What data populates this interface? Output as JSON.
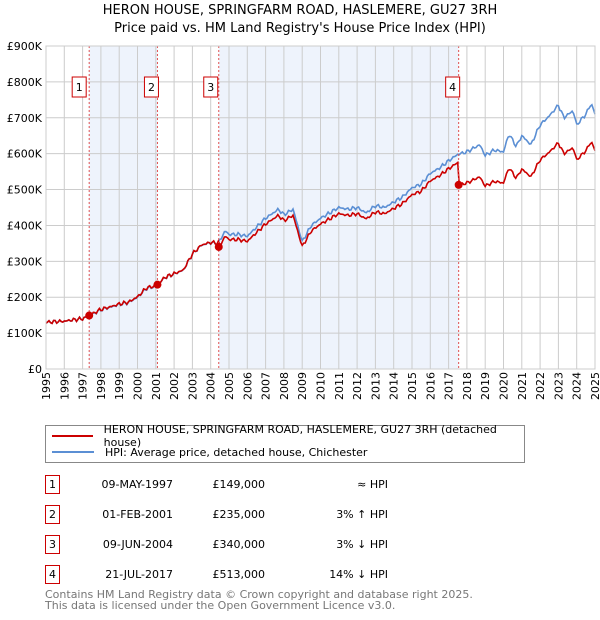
{
  "title": "HERON HOUSE, SPRINGFARM ROAD, HASLEMERE, GU27 3RH",
  "subtitle": "Price paid vs. HM Land Registry's House Price Index (HPI)",
  "chart_data": {
    "type": "line",
    "ylim": [
      0,
      900000
    ],
    "xlim": [
      1995,
      2025
    ],
    "yticks": [
      {
        "v": 0,
        "label": "£0"
      },
      {
        "v": 100000,
        "label": "£100K"
      },
      {
        "v": 200000,
        "label": "£200K"
      },
      {
        "v": 300000,
        "label": "£300K"
      },
      {
        "v": 400000,
        "label": "£400K"
      },
      {
        "v": 500000,
        "label": "£500K"
      },
      {
        "v": 600000,
        "label": "£600K"
      },
      {
        "v": 700000,
        "label": "£700K"
      },
      {
        "v": 800000,
        "label": "£800K"
      },
      {
        "v": 900000,
        "label": "£900K"
      }
    ],
    "xticks": [
      "1995",
      "1996",
      "1997",
      "1998",
      "1999",
      "2000",
      "2001",
      "2002",
      "2003",
      "2004",
      "2005",
      "2006",
      "2007",
      "2008",
      "2009",
      "2010",
      "2011",
      "2012",
      "2013",
      "2014",
      "2015",
      "2016",
      "2017",
      "2018",
      "2019",
      "2020",
      "2021",
      "2022",
      "2023",
      "2024",
      "2025"
    ],
    "colors": {
      "price": "#cc0000",
      "hpi": "#5b8fd4",
      "shade": "#eef3fc",
      "sale_line": "#e05050"
    },
    "hpi_series": {
      "name": "HPI: Average price, detached house, Chichester",
      "x": [
        1995,
        1995.5,
        1996,
        1996.5,
        1997,
        1997.4,
        1998,
        1998.5,
        1999,
        1999.5,
        2000,
        2000.5,
        2001,
        2001.5,
        2002,
        2002.5,
        2003,
        2003.5,
        2004,
        2004.4,
        2004.8,
        2005,
        2005.5,
        2006,
        2006.5,
        2007,
        2007.7,
        2008,
        2008.5,
        2009,
        2009.5,
        2010,
        2010.5,
        2011,
        2011.5,
        2012,
        2012.5,
        2013,
        2013.5,
        2014,
        2014.5,
        2015,
        2015.5,
        2016,
        2016.5,
        2017,
        2017.5,
        2018,
        2018.7,
        2019,
        2019.5,
        2020,
        2020.3,
        2020.7,
        2021,
        2021.5,
        2022,
        2022.5,
        2023,
        2023.3,
        2023.8,
        2024,
        2024.5,
        2024.8,
        2025
      ],
      "y": [
        130000,
        132000,
        133000,
        137000,
        140000,
        149000,
        165000,
        172000,
        180000,
        185000,
        200000,
        225000,
        230000,
        255000,
        265000,
        275000,
        320000,
        345000,
        352000,
        350000,
        385000,
        375000,
        375000,
        370000,
        395000,
        420000,
        445000,
        430000,
        445000,
        355000,
        400000,
        420000,
        435000,
        450000,
        445000,
        450000,
        435000,
        455000,
        450000,
        465000,
        480000,
        505000,
        515000,
        545000,
        560000,
        580000,
        598000,
        605000,
        625000,
        595000,
        610000,
        605000,
        655000,
        620000,
        650000,
        625000,
        680000,
        705000,
        735000,
        700000,
        720000,
        680000,
        710000,
        740000,
        710000
      ]
    },
    "price_series": {
      "name": "HERON HOUSE, SPRINGFARM ROAD, HASLEMERE, GU27 3RH (detached house)"
    },
    "sales": [
      {
        "n": "1",
        "x": 1997.36,
        "date": "09-MAY-1997",
        "price": 149000,
        "price_label": "£149,000",
        "hpi": "≈ HPI"
      },
      {
        "n": "2",
        "x": 2001.09,
        "date": "01-FEB-2001",
        "price": 235000,
        "price_label": "£235,000",
        "hpi": "3% ↑ HPI"
      },
      {
        "n": "3",
        "x": 2004.44,
        "date": "09-JUN-2004",
        "price": 340000,
        "price_label": "£340,000",
        "hpi": "3% ↓ HPI"
      },
      {
        "n": "4",
        "x": 2017.55,
        "date": "21-JUL-2017",
        "price": 513000,
        "price_label": "£513,000",
        "hpi": "14% ↓ HPI"
      }
    ]
  },
  "footer": {
    "line1": "Contains HM Land Registry data © Crown copyright and database right 2025.",
    "line2": "This data is licensed under the Open Government Licence v3.0."
  }
}
